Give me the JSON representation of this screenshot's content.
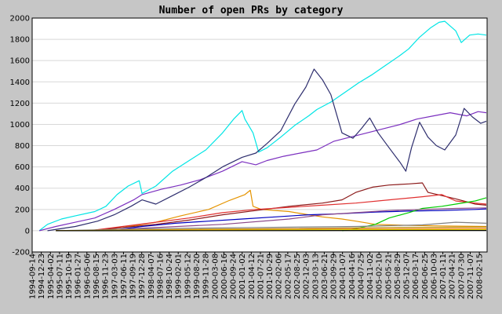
{
  "chart_data": {
    "type": "line",
    "title": "Number of open PRs by category",
    "xlabel": "",
    "ylabel": "",
    "ylim": [
      -200,
      2000
    ],
    "yticks": [
      -200,
      0,
      200,
      400,
      600,
      800,
      1000,
      1200,
      1400,
      1600,
      1800,
      2000
    ],
    "grid": true,
    "legend": "none",
    "x_range": [
      "1994-09-14",
      "2008-05-10"
    ],
    "x_ticks": [
      "1994-09-14",
      "1994-12-23",
      "1995-04-02",
      "1995-07-11",
      "1995-10-19",
      "1996-01-27",
      "1996-05-06",
      "1996-08-15",
      "1996-11-23",
      "1997-03-03",
      "1997-06-11",
      "1997-09-19",
      "1997-12-28",
      "1998-04-07",
      "1998-07-16",
      "1998-10-24",
      "1999-02-01",
      "1999-05-12",
      "1999-08-20",
      "1999-11-28",
      "2000-03-08",
      "2000-06-16",
      "2000-09-24",
      "2001-01-02",
      "2001-04-12",
      "2001-07-21",
      "2001-10-29",
      "2002-02-06",
      "2002-05-17",
      "2002-08-25",
      "2002-12-03",
      "2003-03-13",
      "2003-06-21",
      "2003-09-29",
      "2004-01-07",
      "2004-04-16",
      "2004-07-25",
      "2004-11-02",
      "2005-02-10",
      "2005-05-21",
      "2005-08-29",
      "2005-12-07",
      "2006-03-17",
      "2006-06-25",
      "2006-10-03",
      "2007-01-11",
      "2007-04-21",
      "2007-07-30",
      "2007-11-07",
      "2008-02-15"
    ],
    "series": [
      {
        "color": "#00e5e5",
        "points": [
          [
            "1994-12-01",
            0
          ],
          [
            "1995-03-01",
            60
          ],
          [
            "1995-08-01",
            110
          ],
          [
            "1996-01-01",
            140
          ],
          [
            "1996-08-01",
            180
          ],
          [
            "1996-12-01",
            230
          ],
          [
            "1997-04-01",
            340
          ],
          [
            "1997-08-01",
            420
          ],
          [
            "1997-12-01",
            470
          ],
          [
            "1998-01-01",
            350
          ],
          [
            "1998-06-01",
            420
          ],
          [
            "1998-12-01",
            560
          ],
          [
            "1999-06-01",
            660
          ],
          [
            "1999-12-01",
            760
          ],
          [
            "2000-06-01",
            920
          ],
          [
            "2000-10-01",
            1050
          ],
          [
            "2001-01-01",
            1130
          ],
          [
            "2001-02-01",
            1050
          ],
          [
            "2001-05-01",
            920
          ],
          [
            "2001-07-01",
            740
          ],
          [
            "2001-10-01",
            780
          ],
          [
            "2002-03-01",
            880
          ],
          [
            "2002-08-01",
            990
          ],
          [
            "2003-01-01",
            1080
          ],
          [
            "2003-04-01",
            1140
          ],
          [
            "2003-09-01",
            1210
          ],
          [
            "2004-02-01",
            1300
          ],
          [
            "2004-07-01",
            1390
          ],
          [
            "2004-12-01",
            1470
          ],
          [
            "2005-05-01",
            1560
          ],
          [
            "2005-10-01",
            1650
          ],
          [
            "2006-01-01",
            1710
          ],
          [
            "2006-05-01",
            1820
          ],
          [
            "2006-09-01",
            1910
          ],
          [
            "2006-12-01",
            1960
          ],
          [
            "2007-02-01",
            1970
          ],
          [
            "2007-06-01",
            1880
          ],
          [
            "2007-08-01",
            1770
          ],
          [
            "2007-11-01",
            1840
          ],
          [
            "2008-02-01",
            1850
          ],
          [
            "2008-05-01",
            1840
          ]
        ]
      },
      {
        "color": "#7b2fbf",
        "points": [
          [
            "1994-12-01",
            0
          ],
          [
            "1995-06-01",
            40
          ],
          [
            "1996-01-01",
            80
          ],
          [
            "1996-08-01",
            120
          ],
          [
            "1997-03-01",
            200
          ],
          [
            "1997-10-01",
            290
          ],
          [
            "1998-01-01",
            340
          ],
          [
            "1998-08-01",
            390
          ],
          [
            "1999-03-01",
            430
          ],
          [
            "1999-10-01",
            480
          ],
          [
            "2000-06-01",
            560
          ],
          [
            "2001-01-01",
            650
          ],
          [
            "2001-06-01",
            620
          ],
          [
            "2001-10-01",
            660
          ],
          [
            "2002-04-01",
            700
          ],
          [
            "2002-10-01",
            730
          ],
          [
            "2003-04-01",
            760
          ],
          [
            "2003-10-01",
            840
          ],
          [
            "2004-04-01",
            880
          ],
          [
            "2004-10-01",
            920
          ],
          [
            "2005-04-01",
            960
          ],
          [
            "2005-10-01",
            1000
          ],
          [
            "2006-04-01",
            1050
          ],
          [
            "2006-10-01",
            1080
          ],
          [
            "2007-04-01",
            1110
          ],
          [
            "2007-10-01",
            1080
          ],
          [
            "2008-02-01",
            1120
          ],
          [
            "2008-05-01",
            1110
          ]
        ]
      },
      {
        "color": "#2e2e6e",
        "points": [
          [
            "1995-03-01",
            0
          ],
          [
            "1996-01-01",
            40
          ],
          [
            "1996-09-01",
            90
          ],
          [
            "1997-03-01",
            150
          ],
          [
            "1997-09-01",
            230
          ],
          [
            "1998-01-01",
            290
          ],
          [
            "1998-06-01",
            250
          ],
          [
            "1998-12-01",
            330
          ],
          [
            "1999-06-01",
            410
          ],
          [
            "1999-12-01",
            500
          ],
          [
            "2000-06-01",
            600
          ],
          [
            "2001-01-01",
            690
          ],
          [
            "2001-06-01",
            730
          ],
          [
            "2001-10-01",
            820
          ],
          [
            "2002-03-01",
            940
          ],
          [
            "2002-08-01",
            1190
          ],
          [
            "2002-12-01",
            1350
          ],
          [
            "2003-03-01",
            1520
          ],
          [
            "2003-06-01",
            1420
          ],
          [
            "2003-09-01",
            1280
          ],
          [
            "2004-01-01",
            920
          ],
          [
            "2004-05-01",
            870
          ],
          [
            "2004-08-01",
            960
          ],
          [
            "2004-11-01",
            1060
          ],
          [
            "2005-02-01",
            920
          ],
          [
            "2005-06-01",
            780
          ],
          [
            "2005-10-01",
            640
          ],
          [
            "2005-12-01",
            560
          ],
          [
            "2006-02-01",
            780
          ],
          [
            "2006-05-01",
            1020
          ],
          [
            "2006-08-01",
            880
          ],
          [
            "2006-11-01",
            800
          ],
          [
            "2007-02-01",
            760
          ],
          [
            "2007-06-01",
            900
          ],
          [
            "2007-09-01",
            1150
          ],
          [
            "2007-12-01",
            1070
          ],
          [
            "2008-03-01",
            1010
          ],
          [
            "2008-05-01",
            1030
          ]
        ]
      },
      {
        "color": "#e59400",
        "points": [
          [
            "1996-06-01",
            0
          ],
          [
            "1997-06-01",
            30
          ],
          [
            "1998-06-01",
            80
          ],
          [
            "1999-03-01",
            140
          ],
          [
            "2000-01-01",
            200
          ],
          [
            "2000-08-01",
            280
          ],
          [
            "2001-02-01",
            340
          ],
          [
            "2001-04-01",
            380
          ],
          [
            "2001-05-01",
            230
          ],
          [
            "2001-08-01",
            200
          ],
          [
            "2002-06-01",
            180
          ],
          [
            "2003-01-01",
            150
          ],
          [
            "2003-06-01",
            130
          ],
          [
            "2004-01-01",
            110
          ],
          [
            "2004-06-01",
            90
          ],
          [
            "2005-01-01",
            60
          ],
          [
            "2006-01-01",
            50
          ],
          [
            "2007-01-01",
            45
          ],
          [
            "2008-05-01",
            40
          ]
        ]
      },
      {
        "color": "#8b1a1a",
        "points": [
          [
            "1996-06-01",
            0
          ],
          [
            "1997-06-01",
            30
          ],
          [
            "1998-06-01",
            60
          ],
          [
            "1999-06-01",
            100
          ],
          [
            "2000-06-01",
            150
          ],
          [
            "2001-06-01",
            190
          ],
          [
            "2002-06-01",
            230
          ],
          [
            "2003-06-01",
            260
          ],
          [
            "2004-01-01",
            290
          ],
          [
            "2004-06-01",
            360
          ],
          [
            "2004-12-01",
            410
          ],
          [
            "2005-06-01",
            430
          ],
          [
            "2006-01-01",
            440
          ],
          [
            "2006-06-01",
            450
          ],
          [
            "2006-08-01",
            360
          ],
          [
            "2007-01-01",
            330
          ],
          [
            "2007-06-01",
            300
          ],
          [
            "2008-01-01",
            250
          ],
          [
            "2008-05-01",
            240
          ]
        ]
      },
      {
        "color": "#e03030",
        "points": [
          [
            "1996-06-01",
            0
          ],
          [
            "1997-06-01",
            40
          ],
          [
            "1998-06-01",
            80
          ],
          [
            "1999-06-01",
            120
          ],
          [
            "2000-06-01",
            170
          ],
          [
            "2001-06-01",
            200
          ],
          [
            "2002-06-01",
            220
          ],
          [
            "2003-06-01",
            240
          ],
          [
            "2004-06-01",
            260
          ],
          [
            "2005-06-01",
            290
          ],
          [
            "2006-06-01",
            320
          ],
          [
            "2007-01-01",
            340
          ],
          [
            "2007-06-01",
            280
          ],
          [
            "2008-01-01",
            260
          ],
          [
            "2008-05-01",
            250
          ]
        ]
      },
      {
        "color": "#0000c0",
        "points": [
          [
            "1997-01-01",
            0
          ],
          [
            "1998-01-01",
            40
          ],
          [
            "1999-01-01",
            70
          ],
          [
            "2000-01-01",
            90
          ],
          [
            "2001-01-01",
            110
          ],
          [
            "2002-01-01",
            130
          ],
          [
            "2003-01-01",
            150
          ],
          [
            "2004-01-01",
            160
          ],
          [
            "2005-01-01",
            175
          ],
          [
            "2006-01-01",
            185
          ],
          [
            "2007-01-01",
            190
          ],
          [
            "2008-01-01",
            200
          ],
          [
            "2008-05-01",
            205
          ]
        ]
      },
      {
        "color": "#00cc00",
        "points": [
          [
            "2004-01-01",
            0
          ],
          [
            "2004-06-01",
            20
          ],
          [
            "2005-01-01",
            60
          ],
          [
            "2005-06-01",
            120
          ],
          [
            "2006-01-01",
            170
          ],
          [
            "2006-06-01",
            210
          ],
          [
            "2007-01-01",
            230
          ],
          [
            "2007-06-01",
            250
          ],
          [
            "2008-01-01",
            280
          ],
          [
            "2008-05-01",
            310
          ]
        ]
      },
      {
        "color": "#8b4789",
        "points": [
          [
            "1996-06-01",
            0
          ],
          [
            "1998-06-01",
            30
          ],
          [
            "2000-06-01",
            60
          ],
          [
            "2002-06-01",
            110
          ],
          [
            "2003-06-01",
            150
          ],
          [
            "2004-06-01",
            170
          ],
          [
            "2005-06-01",
            190
          ],
          [
            "2006-06-01",
            200
          ],
          [
            "2007-06-01",
            210
          ],
          [
            "2008-05-01",
            215
          ]
        ]
      },
      {
        "color": "#808080",
        "points": [
          [
            "1995-06-01",
            0
          ],
          [
            "1998-06-01",
            20
          ],
          [
            "2001-06-01",
            30
          ],
          [
            "2004-06-01",
            40
          ],
          [
            "2006-06-01",
            55
          ],
          [
            "2007-06-01",
            80
          ],
          [
            "2008-05-01",
            70
          ]
        ]
      },
      {
        "color": "#b8860b",
        "points": [
          [
            "1995-06-01",
            0
          ],
          [
            "1998-06-01",
            10
          ],
          [
            "2002-06-01",
            20
          ],
          [
            "2005-06-01",
            30
          ],
          [
            "2008-05-01",
            35
          ]
        ]
      },
      {
        "color": "#ff6600",
        "points": [
          [
            "1995-06-01",
            0
          ],
          [
            "2000-06-01",
            10
          ],
          [
            "2004-06-01",
            15
          ],
          [
            "2008-05-01",
            20
          ]
        ]
      },
      {
        "color": "#d4d400",
        "points": [
          [
            "1995-06-01",
            0
          ],
          [
            "2001-06-01",
            8
          ],
          [
            "2008-05-01",
            12
          ]
        ]
      },
      {
        "color": "#000000",
        "points": [
          [
            "1995-06-01",
            0
          ],
          [
            "2008-05-01",
            2
          ]
        ]
      }
    ]
  }
}
